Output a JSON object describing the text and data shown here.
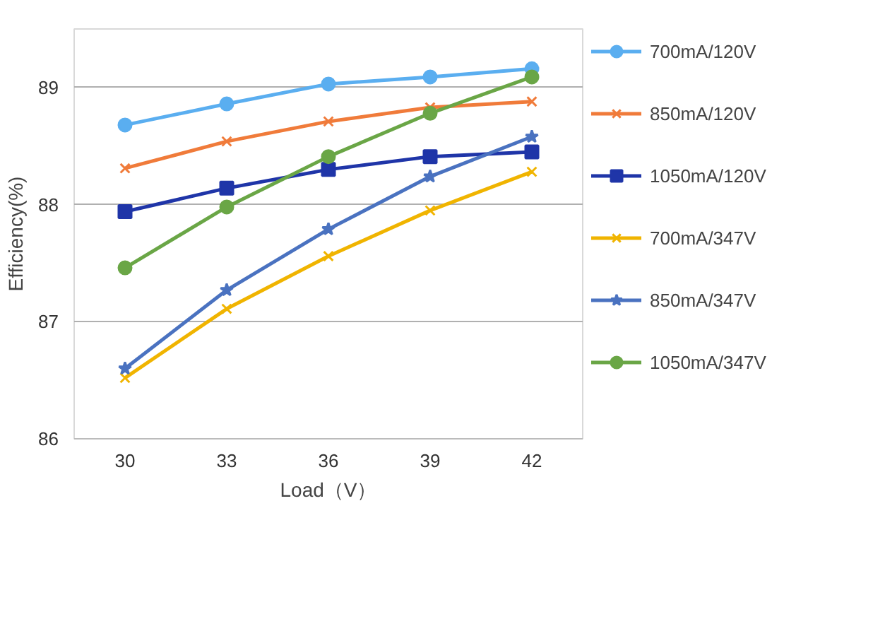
{
  "chart_data": {
    "type": "line",
    "xlabel": "Load（V）",
    "ylabel": "Efficiency(%)",
    "categories": [
      "30",
      "33",
      "36",
      "39",
      "42"
    ],
    "ylim": [
      86,
      89.5
    ],
    "yticks": [
      86,
      87,
      88,
      89
    ],
    "grid": "y",
    "legend": "right",
    "series": [
      {
        "name": "700mA/120V",
        "color": "#5aaef0",
        "marker": "circle",
        "values": [
          88.68,
          88.86,
          89.03,
          89.09,
          89.16
        ]
      },
      {
        "name": "850mA/120V",
        "color": "#f07b3a",
        "marker": "cross",
        "values": [
          88.31,
          88.54,
          88.71,
          88.83,
          88.88
        ]
      },
      {
        "name": "1050mA/120V",
        "color": "#1f35a8",
        "marker": "square",
        "values": [
          87.94,
          88.14,
          88.3,
          88.41,
          88.45
        ]
      },
      {
        "name": "700mA/347V",
        "color": "#f0b400",
        "marker": "cross",
        "values": [
          86.52,
          87.11,
          87.56,
          87.95,
          88.28
        ]
      },
      {
        "name": "850mA/347V",
        "color": "#4a72c0",
        "marker": "star",
        "values": [
          86.6,
          87.27,
          87.79,
          88.24,
          88.58
        ]
      },
      {
        "name": "1050mA/347V",
        "color": "#6aa646",
        "marker": "circle",
        "values": [
          87.46,
          87.98,
          88.41,
          88.78,
          89.09
        ]
      }
    ]
  }
}
